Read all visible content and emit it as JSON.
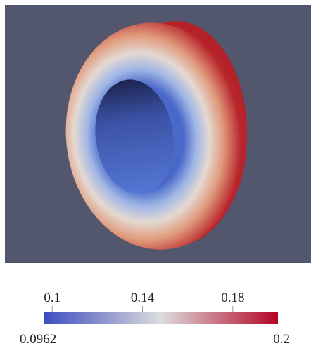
{
  "chart_data": {
    "type": "colorbar",
    "clim": [
      0.0962,
      0.2
    ],
    "cticks": [
      0.1,
      0.14,
      0.18
    ],
    "colormap": [
      "#3b4cc0",
      "#dddddd",
      "#b40426"
    ]
  }
}
